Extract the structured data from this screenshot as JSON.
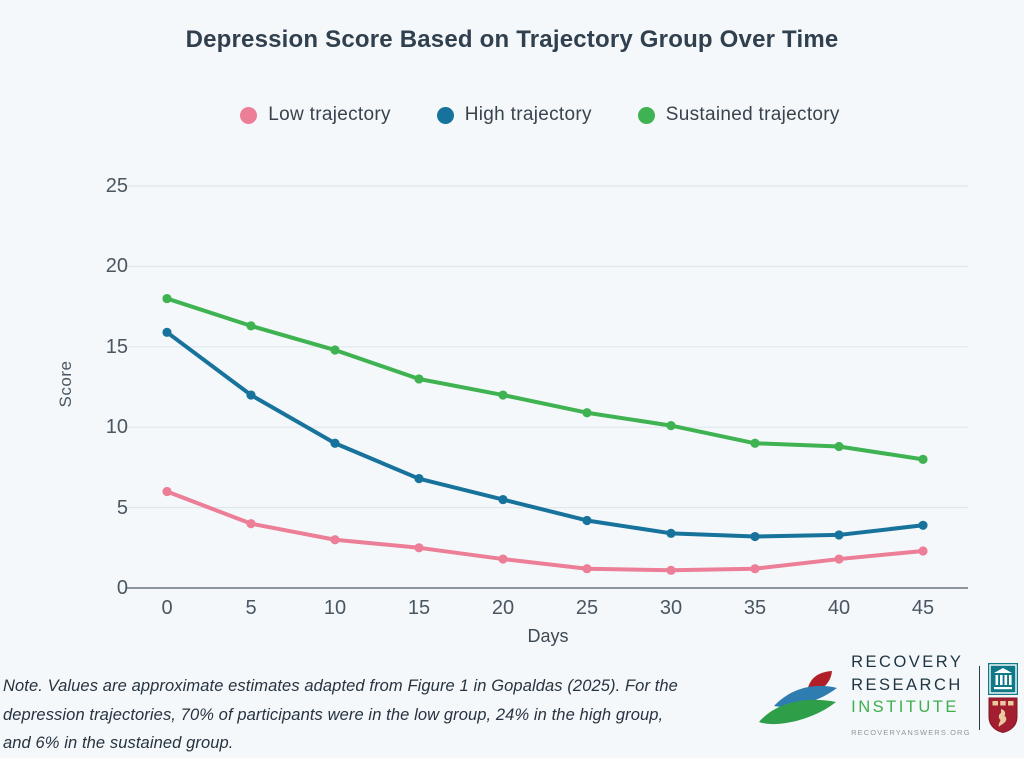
{
  "title": "Depression Score Based on Trajectory Group Over Time",
  "chart_data": {
    "type": "line",
    "x": [
      0,
      5,
      10,
      15,
      20,
      25,
      30,
      35,
      40,
      45
    ],
    "xlabel": "Days",
    "ylabel": "Score",
    "ylim": [
      0,
      25
    ],
    "yticks": [
      0,
      5,
      10,
      15,
      20,
      25
    ],
    "grid": true,
    "legend_position": "top",
    "series": [
      {
        "name": "Low trajectory",
        "color": "#ec7e98",
        "values": [
          6,
          4,
          3,
          2.5,
          1.8,
          1.2,
          1.1,
          1.2,
          1.8,
          2.3
        ]
      },
      {
        "name": "High trajectory",
        "color": "#17729c",
        "values": [
          15.9,
          12,
          9,
          6.8,
          5.5,
          4.2,
          3.4,
          3.2,
          3.3,
          3.9
        ]
      },
      {
        "name": "Sustained trajectory",
        "color": "#3fb251",
        "values": [
          18,
          16.3,
          14.8,
          13,
          12,
          10.9,
          10.1,
          9,
          8.8,
          8
        ]
      }
    ]
  },
  "note": {
    "line1": "Note. Values are approximate estimates adapted from Figure 1 in Gopaldas (2025). For the",
    "line2": "depression trajectories, 70% of participants were in the low group, 24% in the high group,",
    "line3": "and 6% in the sustained group."
  },
  "logo": {
    "line1": "RECOVERY",
    "line2": "RESEARCH",
    "line3": "INSTITUTE",
    "url": "RECOVERYANSWERS.ORG",
    "navy": "#1e3442",
    "green": "#3fae4c",
    "teal": "#0f7987",
    "crimson": "#a41e32"
  }
}
